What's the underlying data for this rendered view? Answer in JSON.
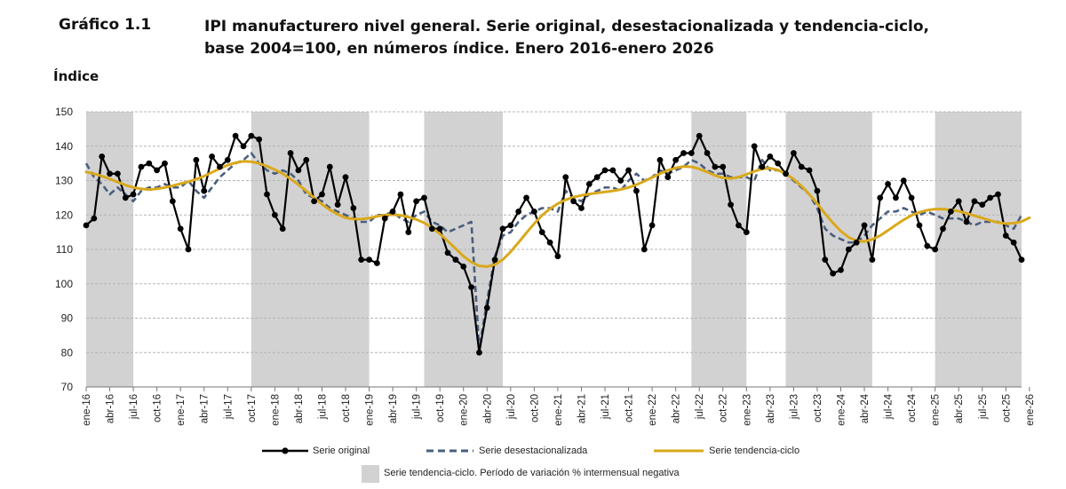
{
  "header": {
    "label": "Gráfico 1.1",
    "title_line1": "IPI manufacturero nivel general. Serie original, desestacionalizada y tendencia-ciclo,",
    "title_line2": "base 2004=100, en números índice. Enero 2016-enero 2026"
  },
  "chart_data": {
    "type": "line",
    "title": "IPI manufacturero nivel general. Serie original, desestacionalizada y tendencia-ciclo, base 2004=100, en números índice. Enero 2016-enero 2026",
    "ylabel": "Índice",
    "ylim": [
      70,
      150
    ],
    "yticks": [
      70,
      80,
      90,
      100,
      110,
      120,
      130,
      140,
      150
    ],
    "grid": true,
    "x_tick_labels": [
      "ene-16",
      "abr-16",
      "jul-16",
      "oct-16",
      "ene-17",
      "abr-17",
      "jul-17",
      "oct-17",
      "ene-18",
      "abr-18",
      "jul-18",
      "oct-18",
      "ene-19",
      "abr-19",
      "jul-19",
      "oct-19",
      "ene-20",
      "abr-20",
      "jul-20",
      "oct-20",
      "ene-21",
      "abr-21",
      "jul-21",
      "oct-21",
      "ene-22",
      "abr-22",
      "jul-22",
      "oct-22",
      "ene-23",
      "abr-23",
      "jul-23",
      "oct-23",
      "ene-24",
      "abr-24",
      "jul-24",
      "oct-24",
      "ene-25",
      "abr-25",
      "jul-25",
      "oct-25",
      "ene-26"
    ],
    "shaded_periods": [
      {
        "start": "ene-16",
        "end": "jul-16"
      },
      {
        "start": "oct-17",
        "end": "ene-19"
      },
      {
        "start": "ago-19",
        "end": "jun-20"
      },
      {
        "start": "jun-22",
        "end": "ene-23"
      },
      {
        "start": "jun-23",
        "end": "may-24"
      },
      {
        "start": "ene-25",
        "end": "dic-25"
      }
    ],
    "series": [
      {
        "name": "Serie original",
        "color": "#000000",
        "values": [
          117,
          119,
          137,
          132,
          132,
          125,
          126,
          134,
          135,
          133,
          135,
          124,
          116,
          110,
          136,
          127,
          137,
          134,
          136,
          143,
          140,
          143,
          142,
          126,
          120,
          116,
          138,
          133,
          136,
          124,
          126,
          134,
          123,
          131,
          122,
          107,
          107,
          106,
          119,
          121,
          126,
          115,
          124,
          125,
          116,
          116,
          109,
          107,
          105,
          99,
          80,
          93,
          107,
          116,
          117,
          121,
          125,
          121,
          115,
          112,
          108,
          131,
          124,
          122,
          129,
          131,
          133,
          133,
          130,
          133,
          127,
          110,
          117,
          136,
          131,
          136,
          138,
          138,
          143,
          138,
          134,
          134,
          123,
          117,
          115,
          140,
          134,
          137,
          135,
          132,
          138,
          134,
          133,
          127,
          107,
          103,
          104,
          110,
          112,
          117,
          107,
          125,
          129,
          125,
          130,
          125,
          117,
          111,
          110,
          116,
          121,
          124,
          118,
          124,
          123,
          125,
          126,
          114,
          112,
          107
        ]
      },
      {
        "name": "Serie desestacionalizada",
        "color": "#4a5f7e",
        "values": [
          135,
          131,
          129,
          126,
          128,
          126,
          124,
          127,
          128,
          128,
          129,
          128,
          128,
          130,
          127,
          125,
          128,
          131,
          133,
          135,
          136,
          138,
          135,
          133,
          132,
          133,
          132,
          130,
          126,
          125,
          124,
          122,
          121,
          120,
          119,
          118,
          118,
          120,
          120,
          121,
          119,
          118,
          120,
          121,
          118,
          117,
          115,
          116,
          117,
          118,
          81,
          95,
          108,
          114,
          115,
          118,
          120,
          121,
          122,
          122,
          121,
          127,
          125,
          124,
          126,
          127,
          128,
          128,
          127,
          130,
          132,
          130,
          131,
          133,
          132,
          133,
          134,
          136,
          135,
          133,
          132,
          132,
          131,
          131,
          131,
          130,
          136,
          133,
          133,
          132,
          130,
          128,
          126,
          122,
          116,
          114,
          113,
          112,
          112,
          114,
          117,
          119,
          121,
          121,
          122,
          121,
          120,
          121,
          120,
          119,
          119,
          119,
          118,
          117,
          118,
          118,
          118,
          117,
          116,
          120
        ]
      },
      {
        "name": "Serie tendencia-ciclo",
        "color": "#d9a91c",
        "values": [
          132.5,
          132,
          131.3,
          130.5,
          129.6,
          128.7,
          128,
          127.6,
          127.4,
          127.6,
          128,
          128.5,
          129.1,
          129.7,
          130.4,
          131.3,
          132.4,
          133.5,
          134.5,
          135.2,
          135.6,
          135.5,
          135,
          134.2,
          133.2,
          132,
          130.5,
          128.8,
          127,
          125,
          123.1,
          121.5,
          120.2,
          119.2,
          118.8,
          118.8,
          119.1,
          119.6,
          120,
          120.1,
          119.9,
          119.4,
          118.7,
          117.7,
          116.3,
          114.5,
          112.4,
          110.2,
          108,
          106.3,
          105.2,
          105,
          105.6,
          107,
          109.3,
          112,
          114.8,
          117.5,
          119.9,
          121.8,
          123.3,
          124.4,
          125.2,
          125.7,
          126.1,
          126.4,
          126.7,
          127,
          127.4,
          128,
          128.8,
          129.8,
          130.9,
          132,
          133,
          133.7,
          134.1,
          134,
          133.4,
          132.5,
          131.5,
          130.8,
          130.6,
          131,
          131.8,
          132.7,
          133.4,
          133.6,
          133.1,
          132,
          130.4,
          128.4,
          126,
          123.3,
          120.4,
          117.7,
          115.3,
          113.5,
          112.5,
          112.3,
          112.9,
          114,
          115.5,
          117.1,
          118.6,
          119.9,
          120.8,
          121.4,
          121.7,
          121.7,
          121.5,
          121.1,
          120.5,
          119.8,
          119.1,
          118.4,
          117.8,
          117.5,
          117.6,
          118.1,
          119.2
        ]
      }
    ],
    "legend": {
      "position": "bottom",
      "entries": [
        "Serie original",
        "Serie desestacionalizada",
        "Serie tendencia-ciclo"
      ],
      "shade_entry": "Serie tendencia-ciclo. Período de variación % intermensual negativa"
    }
  },
  "colors": {
    "original": "#000000",
    "sa": "#4a5f7e",
    "trend": "#d9a91c",
    "shade": "#d3d2d3",
    "grid": "#b5b5b5"
  }
}
